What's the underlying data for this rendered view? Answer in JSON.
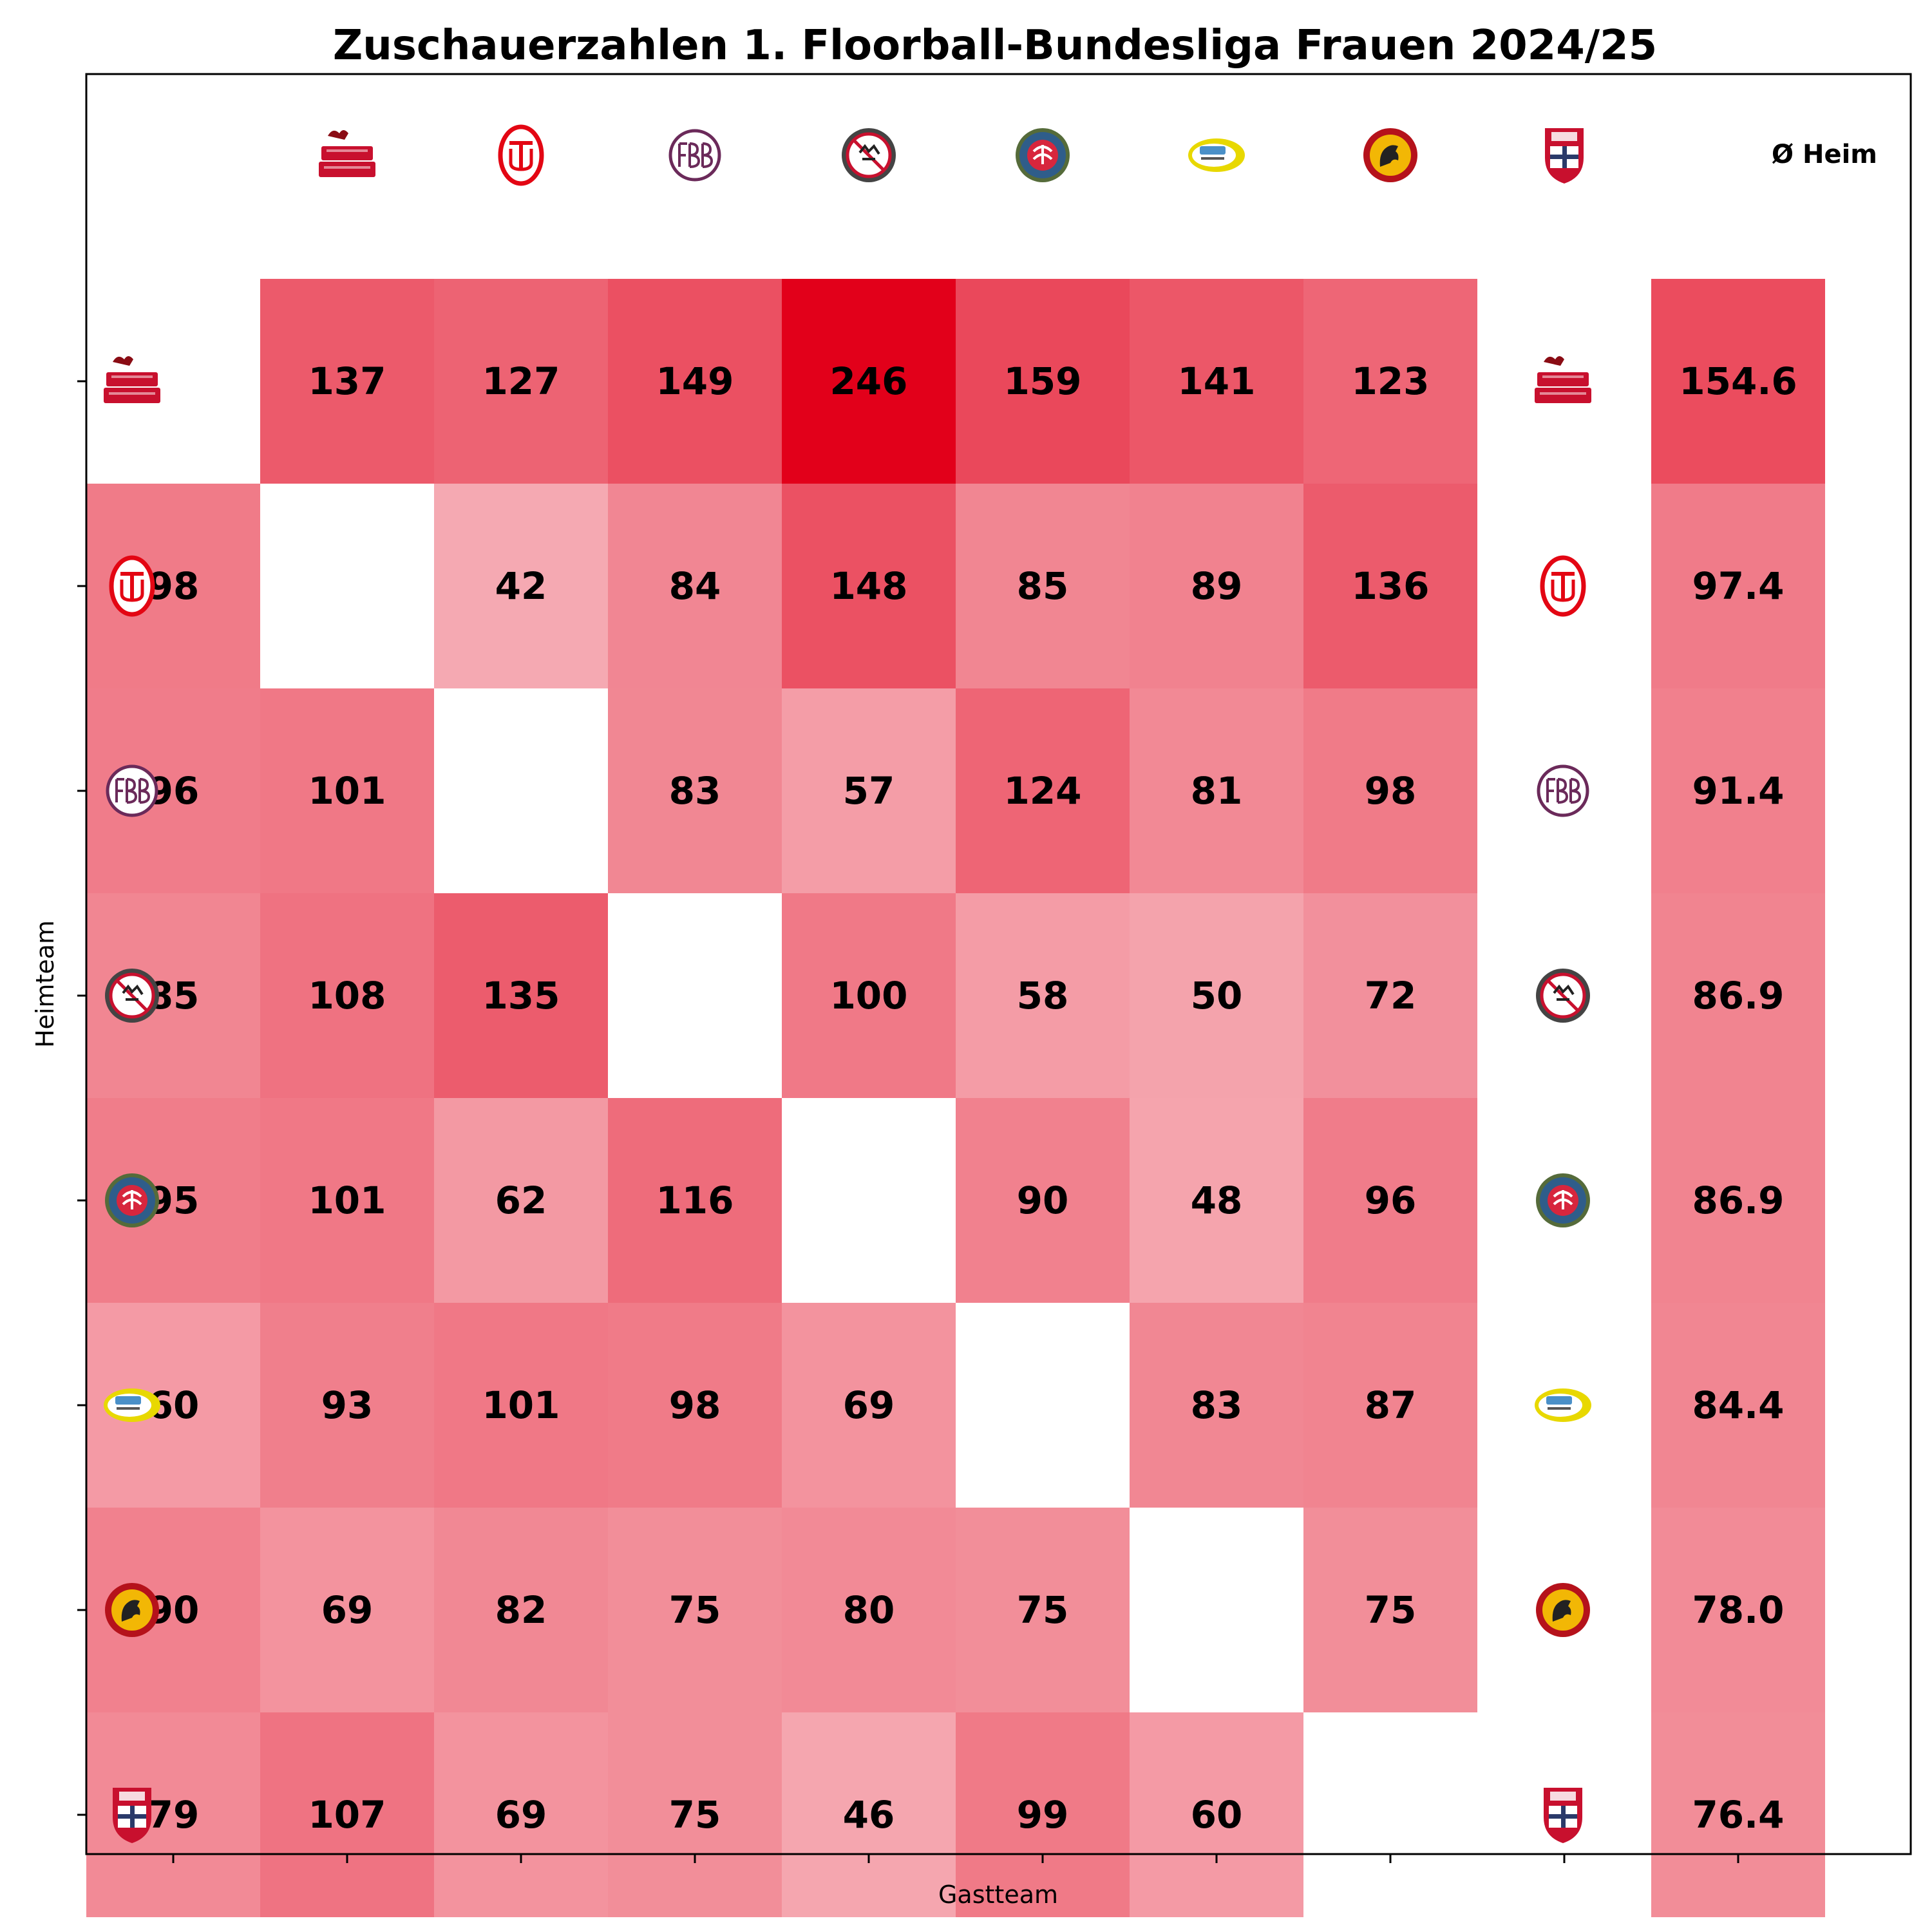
{
  "chart_data": {
    "type": "heatmap",
    "title": "Zuschauerzahlen 1. Floorball-Bundesliga Frauen 2024/25",
    "xlabel": "Gastteam",
    "ylabel": "Heimteam",
    "average_header": "Ø Heim",
    "teams": [
      {
        "icon": "red-devils-logo",
        "color": "#c8102e"
      },
      {
        "icon": "red-circle-crest-logo",
        "color": "#e30613"
      },
      {
        "icon": "purple-monogram-logo",
        "color": "#6b2a5a"
      },
      {
        "icon": "dark-round-badge-logo",
        "color": "#333333"
      },
      {
        "icon": "blue-round-badge-logo",
        "color": "#2f5d8a"
      },
      {
        "icon": "tsg-yellow-oval-logo",
        "color": "#e8d800"
      },
      {
        "icon": "red-round-horse-logo",
        "color": "#b5121b"
      },
      {
        "icon": "ssf-red-shield-logo",
        "color": "#c8102e"
      }
    ],
    "values": [
      [
        null,
        137,
        127,
        149,
        246,
        159,
        141,
        123
      ],
      [
        98,
        null,
        42,
        84,
        148,
        85,
        89,
        136
      ],
      [
        96,
        101,
        null,
        83,
        57,
        124,
        81,
        98
      ],
      [
        85,
        108,
        135,
        null,
        100,
        58,
        50,
        72
      ],
      [
        95,
        101,
        62,
        116,
        null,
        90,
        48,
        96
      ],
      [
        60,
        93,
        101,
        98,
        69,
        null,
        83,
        87
      ],
      [
        90,
        69,
        82,
        75,
        80,
        75,
        null,
        75
      ],
      [
        79,
        107,
        69,
        75,
        46,
        99,
        60,
        null
      ]
    ],
    "home_averages": [
      "154.6",
      "97.4",
      "91.4",
      "86.9",
      "86.9",
      "84.4",
      "78.0",
      "76.4"
    ],
    "color_scale": {
      "min_color": "#ffffff",
      "max_color": "#e2001a",
      "vmin": 0,
      "vmax": 246
    }
  }
}
